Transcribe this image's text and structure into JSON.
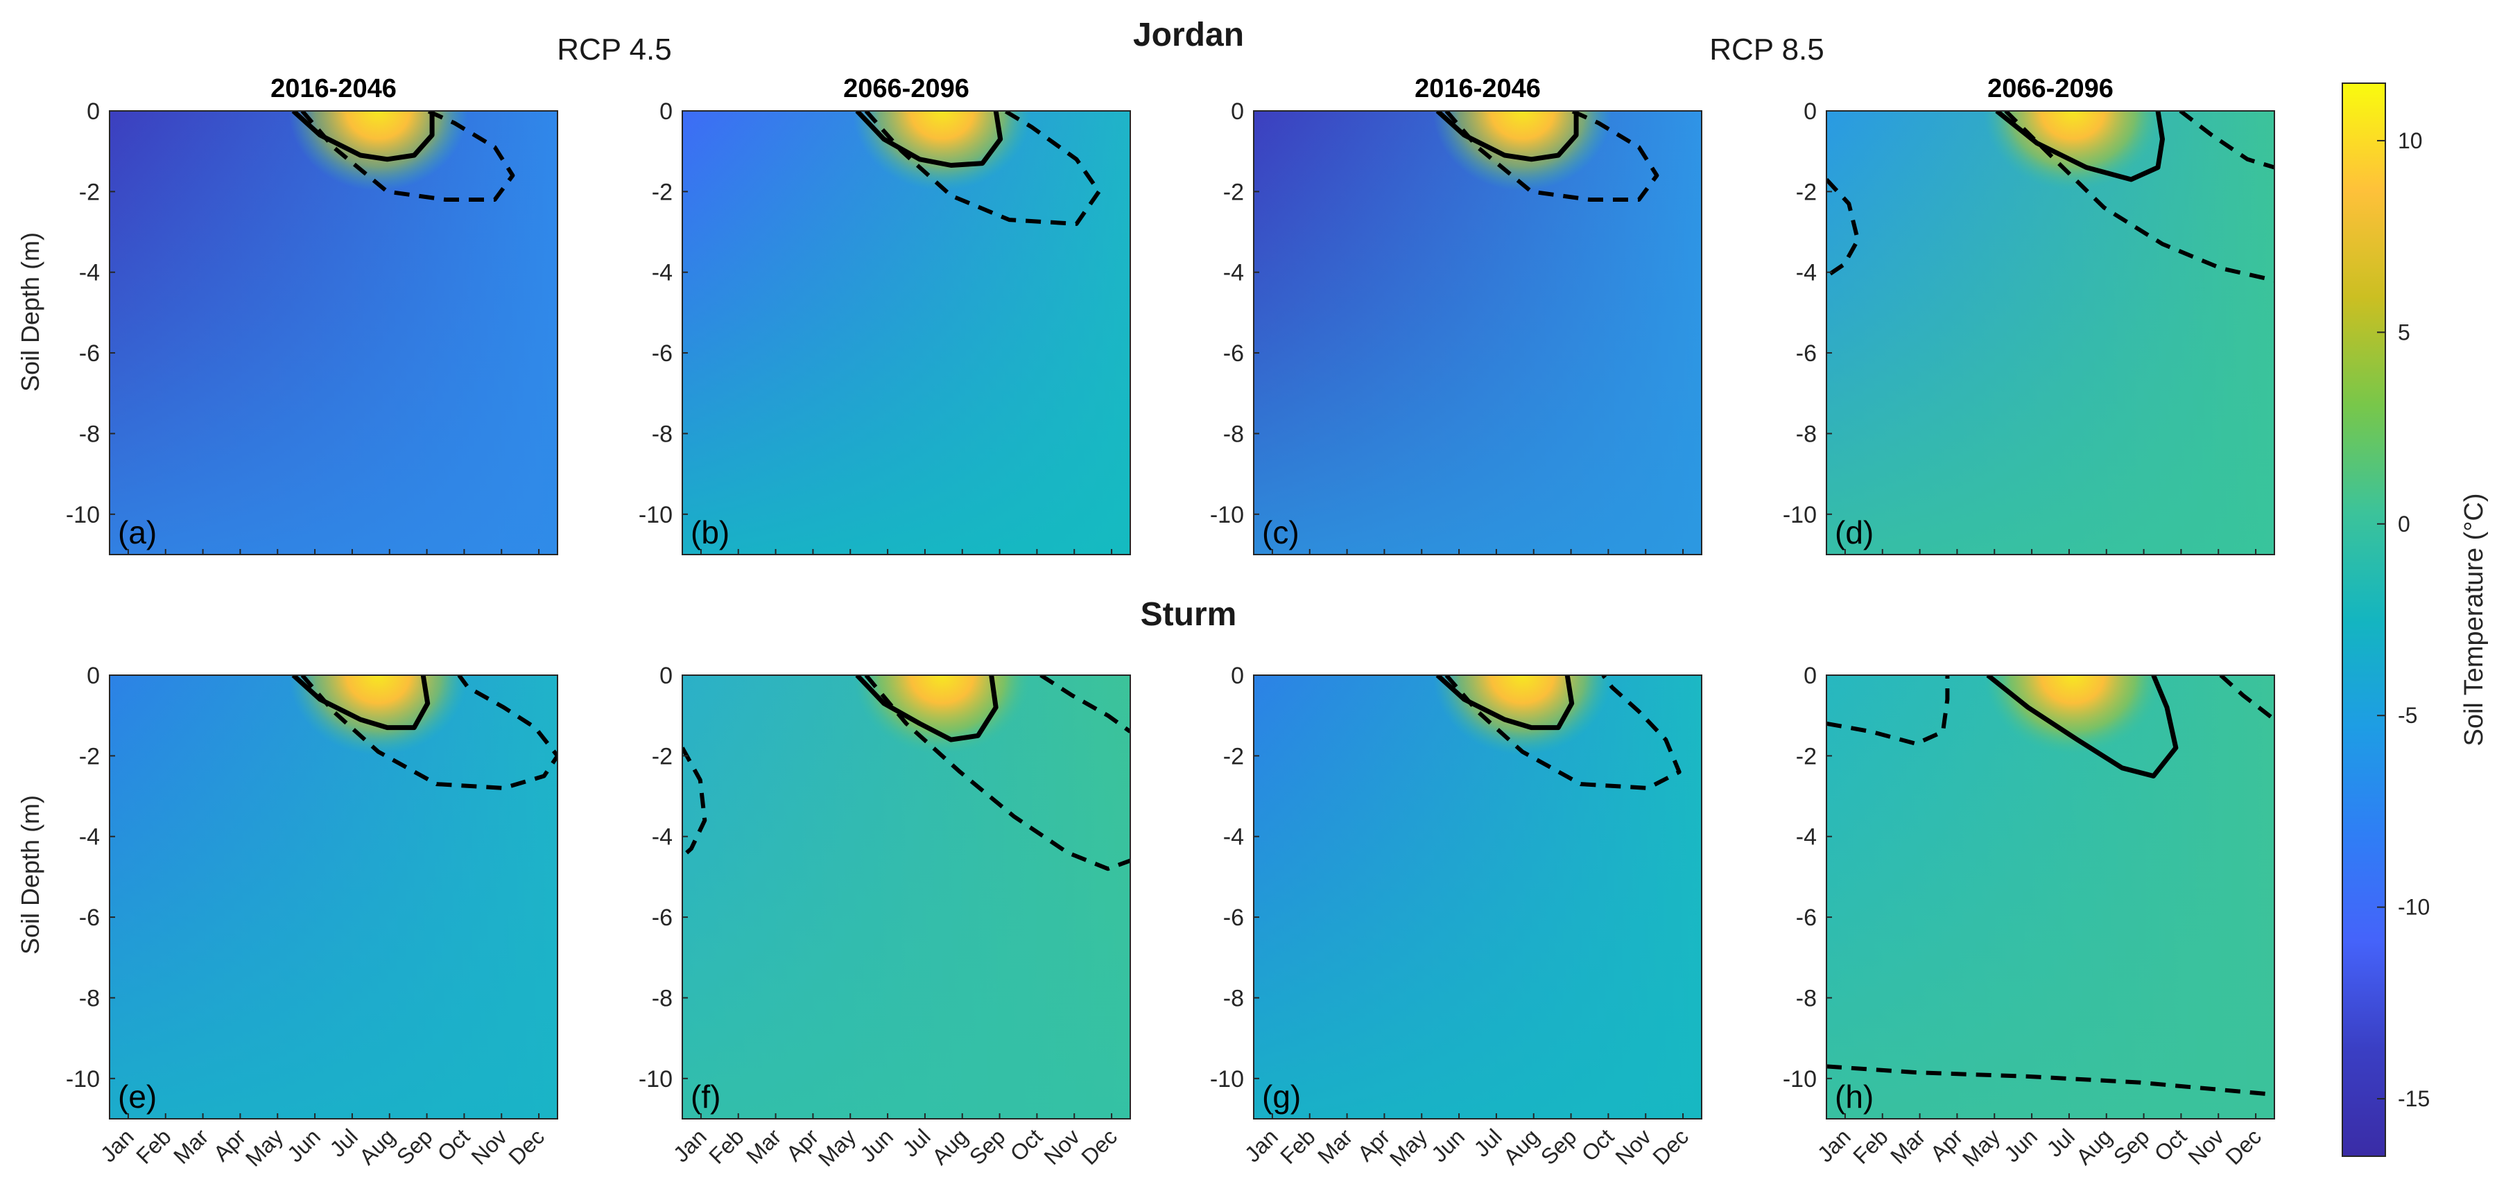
{
  "chart_data": {
    "type": "heatmap",
    "rows": [
      {
        "title": "Jordan"
      },
      {
        "title": "Sturm"
      }
    ],
    "scenario_headers": [
      {
        "label": "RCP 4.5"
      },
      {
        "label": "RCP 8.5"
      }
    ],
    "column_titles": [
      "2016-2046",
      "2066-2096",
      "2016-2046",
      "2066-2096"
    ],
    "ylabel": "Soil Depth (m)",
    "ylim": [
      -11,
      0
    ],
    "yticks": [
      0,
      -2,
      -4,
      -6,
      -8,
      -10
    ],
    "ytick_labels": [
      "0",
      "-2",
      "-4",
      "-6",
      "-8",
      "-10"
    ],
    "xticks": [
      "Jan",
      "Feb",
      "Mar",
      "Apr",
      "May",
      "Jun",
      "Jul",
      "Aug",
      "Sep",
      "Oct",
      "Nov",
      "Dec"
    ],
    "colorbar": {
      "label": "Soil Temperature (°C)",
      "range": [
        -16.5,
        11.5
      ],
      "ticks": [
        10,
        5,
        0,
        -5,
        -10,
        -15
      ],
      "tick_labels": [
        "10",
        "5",
        "0",
        "-5",
        "-10",
        "-15"
      ],
      "colormap": "parula"
    },
    "contours": [
      {
        "level": 0,
        "style": "dashed"
      },
      {
        "level": 5,
        "style": "solid"
      }
    ],
    "panels": [
      {
        "label": "(a)",
        "row": 0,
        "col": 0,
        "background": {
          "left": "#3c3fbf",
          "right": "#3088ea",
          "bottom": "#2f8ce8"
        },
        "warm_center": [
          0.6,
          -0.3
        ],
        "solid": [
          [
            0.41,
            0
          ],
          [
            0.47,
            -0.6
          ],
          [
            0.56,
            -1.1
          ],
          [
            0.62,
            -1.2
          ],
          [
            0.68,
            -1.1
          ],
          [
            0.72,
            -0.6
          ],
          [
            0.72,
            0
          ]
        ],
        "dashed": [
          [
            [
              0.43,
              0
            ],
            [
              0.5,
              -0.9
            ],
            [
              0.62,
              -2.0
            ],
            [
              0.75,
              -2.2
            ],
            [
              0.86,
              -2.2
            ],
            [
              0.9,
              -1.6
            ],
            [
              0.86,
              -0.9
            ],
            [
              0.77,
              -0.3
            ],
            [
              0.71,
              0
            ]
          ]
        ]
      },
      {
        "label": "(b)",
        "row": 0,
        "col": 1,
        "background": {
          "left": "#3d6cf6",
          "right": "#1fb4c8",
          "bottom": "#13bcbf"
        },
        "warm_center": [
          0.58,
          -0.3
        ],
        "solid": [
          [
            0.39,
            0
          ],
          [
            0.45,
            -0.7
          ],
          [
            0.53,
            -1.2
          ],
          [
            0.6,
            -1.35
          ],
          [
            0.67,
            -1.3
          ],
          [
            0.71,
            -0.7
          ],
          [
            0.7,
            0
          ]
        ],
        "dashed": [
          [
            [
              0.41,
              0
            ],
            [
              0.49,
              -1.0
            ],
            [
              0.6,
              -2.1
            ],
            [
              0.73,
              -2.7
            ],
            [
              0.88,
              -2.8
            ],
            [
              0.93,
              -2.0
            ],
            [
              0.88,
              -1.2
            ],
            [
              0.78,
              -0.4
            ],
            [
              0.72,
              0
            ]
          ]
        ]
      },
      {
        "label": "(c)",
        "row": 0,
        "col": 2,
        "background": {
          "left": "#3c3fbf",
          "right": "#2f94e6",
          "bottom": "#2b99e0"
        },
        "warm_center": [
          0.6,
          -0.3
        ],
        "solid": [
          [
            0.41,
            0
          ],
          [
            0.47,
            -0.6
          ],
          [
            0.56,
            -1.1
          ],
          [
            0.62,
            -1.2
          ],
          [
            0.68,
            -1.1
          ],
          [
            0.72,
            -0.6
          ],
          [
            0.72,
            0
          ]
        ],
        "dashed": [
          [
            [
              0.43,
              0
            ],
            [
              0.5,
              -0.9
            ],
            [
              0.62,
              -2.0
            ],
            [
              0.75,
              -2.2
            ],
            [
              0.86,
              -2.2
            ],
            [
              0.9,
              -1.6
            ],
            [
              0.86,
              -0.9
            ],
            [
              0.77,
              -0.3
            ],
            [
              0.71,
              0
            ]
          ]
        ]
      },
      {
        "label": "(d)",
        "row": 0,
        "col": 3,
        "background": {
          "left": "#2a9ae3",
          "right": "#3cc39a",
          "bottom": "#38c49c"
        },
        "warm_center": [
          0.55,
          -0.4
        ],
        "solid": [
          [
            0.38,
            0
          ],
          [
            0.47,
            -0.8
          ],
          [
            0.58,
            -1.4
          ],
          [
            0.68,
            -1.7
          ],
          [
            0.74,
            -1.4
          ],
          [
            0.75,
            -0.7
          ],
          [
            0.74,
            0
          ]
        ],
        "dashed": [
          [
            [
              0.4,
              0
            ],
            [
              0.5,
              -1.1
            ],
            [
              0.62,
              -2.4
            ],
            [
              0.75,
              -3.3
            ],
            [
              0.88,
              -3.9
            ],
            [
              1.0,
              -4.2
            ]
          ],
          [
            [
              0.79,
              0
            ],
            [
              0.86,
              -0.6
            ],
            [
              0.94,
              -1.2
            ],
            [
              1.0,
              -1.4
            ]
          ],
          [
            [
              0,
              -1.7
            ],
            [
              0.05,
              -2.3
            ],
            [
              0.07,
              -3.2
            ],
            [
              0.04,
              -3.8
            ],
            [
              0,
              -4.1
            ]
          ]
        ]
      },
      {
        "label": "(e)",
        "row": 1,
        "col": 0,
        "background": {
          "left": "#2c82e6",
          "right": "#20b3c9",
          "bottom": "#19b4c6"
        },
        "warm_center": [
          0.6,
          -0.3
        ],
        "solid": [
          [
            0.41,
            0
          ],
          [
            0.47,
            -0.6
          ],
          [
            0.56,
            -1.1
          ],
          [
            0.62,
            -1.3
          ],
          [
            0.68,
            -1.3
          ],
          [
            0.71,
            -0.7
          ],
          [
            0.7,
            0
          ]
        ],
        "dashed": [
          [
            [
              0.43,
              0
            ],
            [
              0.5,
              -0.9
            ],
            [
              0.6,
              -1.9
            ],
            [
              0.73,
              -2.7
            ],
            [
              0.88,
              -2.8
            ],
            [
              0.97,
              -2.5
            ],
            [
              1.0,
              -2.0
            ],
            [
              0.95,
              -1.3
            ],
            [
              0.88,
              -0.8
            ],
            [
              0.8,
              -0.3
            ],
            [
              0.78,
              0
            ]
          ]
        ]
      },
      {
        "label": "(f)",
        "row": 1,
        "col": 1,
        "background": {
          "left": "#2bb0c8",
          "right": "#3cc39a",
          "bottom": "#33c1a6"
        },
        "warm_center": [
          0.58,
          -0.3
        ],
        "solid": [
          [
            0.39,
            0
          ],
          [
            0.45,
            -0.7
          ],
          [
            0.53,
            -1.2
          ],
          [
            0.6,
            -1.6
          ],
          [
            0.66,
            -1.5
          ],
          [
            0.7,
            -0.8
          ],
          [
            0.69,
            0
          ]
        ],
        "dashed": [
          [
            [
              0.41,
              0
            ],
            [
              0.5,
              -1.2
            ],
            [
              0.62,
              -2.4
            ],
            [
              0.74,
              -3.5
            ],
            [
              0.86,
              -4.4
            ],
            [
              0.95,
              -4.8
            ],
            [
              1.0,
              -4.6
            ]
          ],
          [
            [
              0.8,
              0
            ],
            [
              0.87,
              -0.5
            ],
            [
              0.95,
              -1.0
            ],
            [
              1.0,
              -1.4
            ]
          ],
          [
            [
              0,
              -1.8
            ],
            [
              0.04,
              -2.6
            ],
            [
              0.05,
              -3.6
            ],
            [
              0.02,
              -4.3
            ],
            [
              0,
              -4.5
            ]
          ]
        ]
      },
      {
        "label": "(g)",
        "row": 1,
        "col": 2,
        "background": {
          "left": "#2c82e6",
          "right": "#1cb8c4",
          "bottom": "#16b8c2"
        },
        "warm_center": [
          0.6,
          -0.3
        ],
        "solid": [
          [
            0.41,
            0
          ],
          [
            0.47,
            -0.6
          ],
          [
            0.56,
            -1.1
          ],
          [
            0.62,
            -1.3
          ],
          [
            0.68,
            -1.3
          ],
          [
            0.71,
            -0.7
          ],
          [
            0.7,
            0
          ]
        ],
        "dashed": [
          [
            [
              0.43,
              0
            ],
            [
              0.5,
              -0.9
            ],
            [
              0.6,
              -1.9
            ],
            [
              0.73,
              -2.7
            ],
            [
              0.88,
              -2.8
            ],
            [
              0.95,
              -2.4
            ],
            [
              0.92,
              -1.6
            ],
            [
              0.86,
              -0.9
            ],
            [
              0.8,
              -0.3
            ],
            [
              0.78,
              0
            ]
          ]
        ]
      },
      {
        "label": "(h)",
        "row": 1,
        "col": 3,
        "background": {
          "left": "#27b7c0",
          "right": "#3cc39a",
          "bottom": "#3bc29b"
        },
        "warm_center": [
          0.55,
          -0.5
        ],
        "solid": [
          [
            0.36,
            0
          ],
          [
            0.45,
            -0.8
          ],
          [
            0.56,
            -1.6
          ],
          [
            0.66,
            -2.3
          ],
          [
            0.73,
            -2.5
          ],
          [
            0.78,
            -1.8
          ],
          [
            0.76,
            -0.8
          ],
          [
            0.73,
            0
          ]
        ],
        "dashed": [
          [
            [
              0,
              -1.2
            ],
            [
              0.1,
              -1.4
            ],
            [
              0.2,
              -1.7
            ],
            [
              0.26,
              -1.4
            ],
            [
              0.27,
              -0.6
            ],
            [
              0.27,
              0
            ]
          ],
          [
            [
              0.88,
              0
            ],
            [
              0.93,
              -0.5
            ],
            [
              1.0,
              -1.1
            ]
          ],
          [
            [
              0,
              -9.7
            ],
            [
              0.2,
              -9.85
            ],
            [
              0.45,
              -9.95
            ],
            [
              0.7,
              -10.1
            ],
            [
              1.0,
              -10.4
            ]
          ]
        ]
      }
    ]
  }
}
